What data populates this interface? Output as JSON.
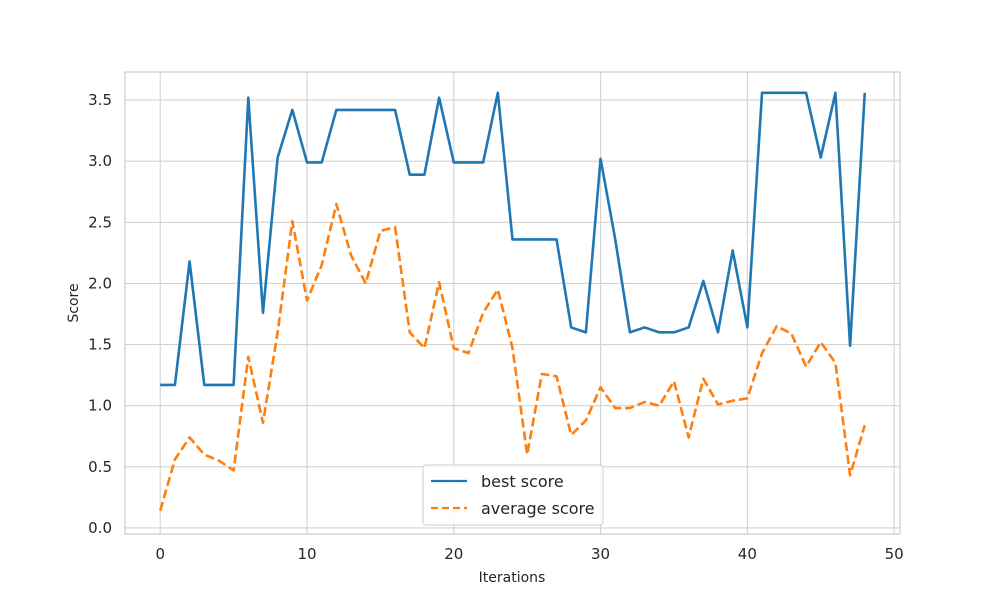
{
  "chart_data": {
    "type": "line",
    "title": "",
    "xlabel": "Iterations",
    "ylabel": "Score",
    "xlim": [
      -2.4,
      50.4
    ],
    "ylim": [
      -0.05,
      3.73
    ],
    "xticks": [
      0,
      10,
      20,
      30,
      40,
      50
    ],
    "yticks": [
      0.0,
      0.5,
      1.0,
      1.5,
      2.0,
      2.5,
      3.0,
      3.5
    ],
    "grid": true,
    "legend_position": "lower-center",
    "x": [
      0,
      1,
      2,
      3,
      4,
      5,
      6,
      7,
      8,
      9,
      10,
      11,
      12,
      13,
      14,
      15,
      16,
      17,
      18,
      19,
      20,
      21,
      22,
      23,
      24,
      25,
      26,
      27,
      28,
      29,
      30,
      31,
      32,
      33,
      34,
      35,
      36,
      37,
      38,
      39,
      40,
      41,
      42,
      43,
      44,
      45,
      46,
      47,
      48
    ],
    "series": [
      {
        "name": "best score",
        "color": "#1f77b4",
        "style": "solid",
        "values": [
          1.17,
          1.17,
          2.18,
          1.17,
          1.17,
          1.17,
          3.52,
          1.76,
          3.03,
          3.42,
          2.99,
          2.99,
          3.42,
          3.42,
          3.42,
          3.42,
          3.42,
          2.89,
          2.89,
          3.52,
          2.99,
          2.99,
          2.99,
          3.56,
          2.36,
          2.36,
          2.36,
          2.36,
          1.64,
          1.6,
          3.02,
          2.36,
          1.6,
          1.64,
          1.6,
          1.6,
          1.64,
          2.02,
          1.6,
          2.27,
          1.64,
          3.56,
          3.56,
          3.56,
          3.56,
          3.03,
          3.56,
          1.49,
          3.56
        ]
      },
      {
        "name": "average score",
        "color": "#ff7f0e",
        "style": "dashed",
        "values": [
          0.14,
          0.56,
          0.74,
          0.6,
          0.55,
          0.47,
          1.4,
          0.86,
          1.6,
          2.51,
          1.86,
          2.15,
          2.65,
          2.23,
          2.0,
          2.43,
          2.46,
          1.6,
          1.47,
          2.01,
          1.47,
          1.43,
          1.76,
          1.95,
          1.47,
          0.6,
          1.26,
          1.24,
          0.76,
          0.88,
          1.15,
          0.98,
          0.98,
          1.03,
          1.0,
          1.2,
          0.74,
          1.22,
          1.01,
          1.04,
          1.06,
          1.43,
          1.65,
          1.59,
          1.32,
          1.52,
          1.35,
          0.43,
          0.84
        ]
      }
    ]
  }
}
